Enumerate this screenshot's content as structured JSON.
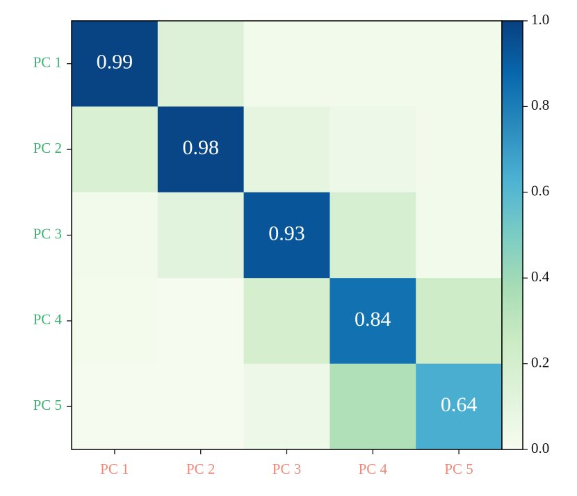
{
  "chart_data": {
    "type": "heatmap",
    "x_categories": [
      "PC 1",
      "PC 2",
      "PC 3",
      "PC 4",
      "PC 5"
    ],
    "y_categories": [
      "PC 1",
      "PC 2",
      "PC 3",
      "PC 4",
      "PC 5"
    ],
    "values": [
      [
        0.99,
        0.15,
        0.03,
        0.03,
        0.03
      ],
      [
        0.17,
        0.98,
        0.1,
        0.05,
        0.03
      ],
      [
        0.03,
        0.12,
        0.93,
        0.18,
        0.03
      ],
      [
        0.02,
        0.01,
        0.2,
        0.84,
        0.24
      ],
      [
        0.01,
        0.01,
        0.05,
        0.35,
        0.64
      ]
    ],
    "annotated": "diagonal",
    "colormap": "GnBu",
    "clim": [
      0,
      1
    ],
    "cticks": [
      {
        "value": 0,
        "label": "0.0"
      },
      0.2,
      0.4,
      0.6,
      0.8,
      {
        "value": 1,
        "label": "1.0"
      }
    ],
    "x_label_color": "#f08a78",
    "y_label_color": "#3cb371",
    "annotation_color": "#ffffff"
  }
}
